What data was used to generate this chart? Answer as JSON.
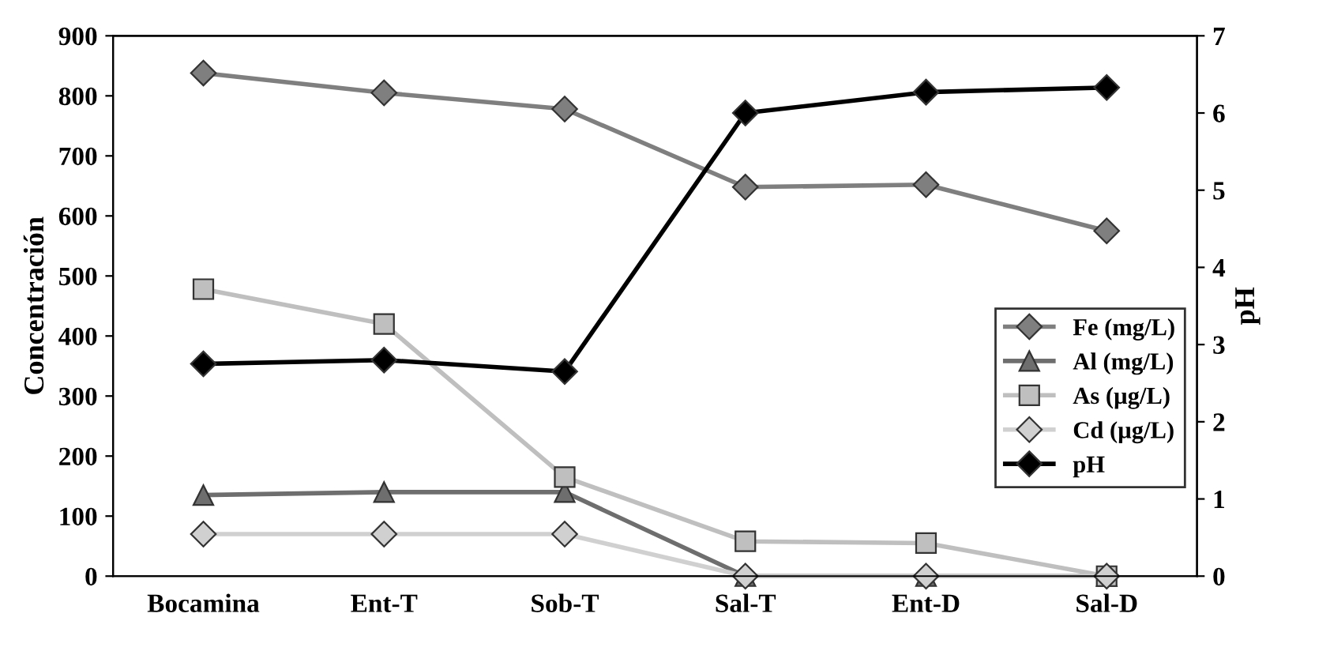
{
  "chart_data": {
    "type": "line",
    "ylabel": "Concentración",
    "y2label": "pH",
    "categories": [
      "Bocamina",
      "Ent-T",
      "Sob-T",
      "Sal-T",
      "Ent-D",
      "Sal-D"
    ],
    "series": [
      {
        "name": "Fe (mg/L)",
        "color": "#7f7f7f",
        "marker": "diamond",
        "values": [
          838,
          805,
          778,
          648,
          652,
          575
        ]
      },
      {
        "name": "Al (mg/L)",
        "color": "#6e6e6e",
        "marker": "triangle",
        "values": [
          135,
          140,
          140,
          0,
          0,
          0
        ]
      },
      {
        "name": "As (µg/L)",
        "color": "#bfbfbf",
        "marker": "square",
        "values": [
          478,
          420,
          165,
          58,
          55,
          0
        ]
      },
      {
        "name": "Cd (µg/L)",
        "color": "#d0d0d0",
        "marker": "diamond",
        "values": [
          70,
          70,
          70,
          0,
          0,
          0
        ]
      },
      {
        "name": "pH",
        "color": "#000000",
        "marker": "diamond",
        "axis": "y2",
        "values": [
          2.75,
          2.8,
          2.65,
          6.0,
          6.27,
          6.33
        ]
      }
    ],
    "ylim": [
      0,
      900
    ],
    "yticks": [
      0,
      100,
      200,
      300,
      400,
      500,
      600,
      700,
      800,
      900
    ],
    "y2lim": [
      0,
      7
    ],
    "y2ticks": [
      0,
      1,
      2,
      3,
      4,
      5,
      6,
      7
    ],
    "legend": "right",
    "grid": false,
    "line_style": "solid"
  }
}
